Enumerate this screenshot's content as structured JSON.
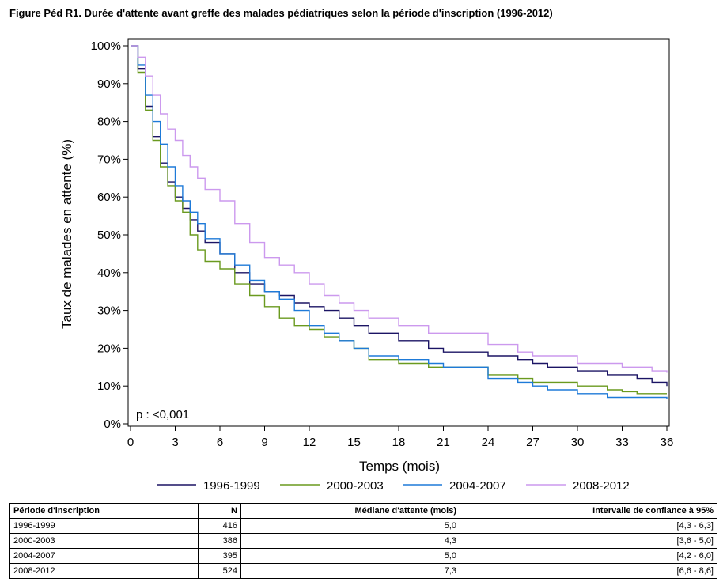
{
  "figure_title": "Figure Péd R1. Durée d'attente avant greffe des malades pédiatriques selon la période d'inscription (1996-2012)",
  "chart_data": {
    "type": "line",
    "xlabel": "Temps (mois)",
    "ylabel": "Taux de malades en attente (%)",
    "xlim": [
      0,
      36
    ],
    "ylim": [
      0,
      100
    ],
    "x_ticks": [
      "0",
      "3",
      "6",
      "9",
      "12",
      "15",
      "18",
      "21",
      "24",
      "27",
      "30",
      "33",
      "36"
    ],
    "y_ticks": [
      "0%",
      "10%",
      "20%",
      "30%",
      "40%",
      "50%",
      "60%",
      "70%",
      "80%",
      "90%",
      "100%"
    ],
    "grid": false,
    "legend_position": "bottom",
    "annotation": "p : <0,001",
    "series": [
      {
        "name": "1996-1999",
        "color": "#1b1464",
        "x": [
          0,
          0.5,
          1,
          1.5,
          2,
          2.5,
          3,
          3.5,
          4,
          4.5,
          5,
          6,
          7,
          8,
          9,
          10,
          11,
          12,
          13,
          14,
          15,
          16,
          18,
          20,
          21,
          24,
          26,
          27,
          28,
          30,
          32,
          33,
          34,
          35,
          36
        ],
        "y": [
          100,
          94,
          84,
          76,
          69,
          64,
          60,
          57,
          54,
          51,
          48,
          45,
          40,
          37,
          35,
          34,
          32,
          31,
          30,
          28,
          26,
          24,
          22,
          20,
          19,
          18,
          17,
          16,
          15,
          14,
          13,
          13,
          12,
          11,
          10
        ]
      },
      {
        "name": "2000-2003",
        "color": "#6a9a1f",
        "x": [
          0,
          0.5,
          1,
          1.5,
          2,
          2.5,
          3,
          3.5,
          4,
          4.5,
          5,
          6,
          7,
          8,
          9,
          10,
          11,
          12,
          13,
          14,
          15,
          16,
          18,
          20,
          21,
          24,
          26,
          27,
          28,
          30,
          32,
          33,
          34,
          35,
          36
        ],
        "y": [
          100,
          93,
          83,
          75,
          68,
          63,
          59,
          56,
          50,
          46,
          43,
          41,
          37,
          34,
          31,
          28,
          26,
          25,
          23,
          22,
          20,
          17,
          16,
          15,
          15,
          13,
          12,
          11,
          11,
          10,
          9,
          8.5,
          8,
          8,
          8
        ]
      },
      {
        "name": "2004-2007",
        "color": "#1e7ad8",
        "x": [
          0,
          0.5,
          1,
          1.5,
          2,
          2.5,
          3,
          3.5,
          4,
          4.5,
          5,
          6,
          7,
          8,
          9,
          10,
          11,
          12,
          13,
          14,
          15,
          16,
          18,
          20,
          21,
          24,
          26,
          27,
          28,
          30,
          32,
          33,
          34,
          35,
          36
        ],
        "y": [
          100,
          95,
          87,
          80,
          74,
          68,
          63,
          59,
          56,
          53,
          49,
          45,
          42,
          38,
          35,
          33,
          30,
          26,
          24,
          22,
          20,
          18,
          17,
          16,
          15,
          12,
          11,
          10,
          9,
          8,
          7,
          7,
          7,
          7,
          6.5
        ]
      },
      {
        "name": "2008-2012",
        "color": "#cc99ee",
        "x": [
          0,
          0.5,
          1,
          1.5,
          2,
          2.5,
          3,
          3.5,
          4,
          4.5,
          5,
          6,
          7,
          8,
          9,
          10,
          11,
          12,
          13,
          14,
          15,
          16,
          18,
          20,
          21,
          24,
          26,
          27,
          28,
          30,
          32,
          33,
          34,
          35,
          36
        ],
        "y": [
          100,
          97,
          92,
          87,
          82,
          78,
          75,
          71,
          68,
          65,
          62,
          59,
          53,
          48,
          44,
          42,
          40,
          37,
          34,
          32,
          30,
          28,
          26,
          24,
          24,
          21,
          19,
          18,
          18,
          16,
          16,
          15,
          15,
          14,
          13.5
        ]
      }
    ]
  },
  "table": {
    "headers": [
      "Période d'inscription",
      "N",
      "Médiane d'attente (mois)",
      "Intervalle de confiance à 95%"
    ],
    "rows": [
      [
        "1996-1999",
        "416",
        "5,0",
        "[4,3 - 6,3]"
      ],
      [
        "2000-2003",
        "386",
        "4,3",
        "[3,6 - 5,0]"
      ],
      [
        "2004-2007",
        "395",
        "5,0",
        "[4,2 - 6,0]"
      ],
      [
        "2008-2012",
        "524",
        "7,3",
        "[6,6 - 8,6]"
      ]
    ]
  }
}
